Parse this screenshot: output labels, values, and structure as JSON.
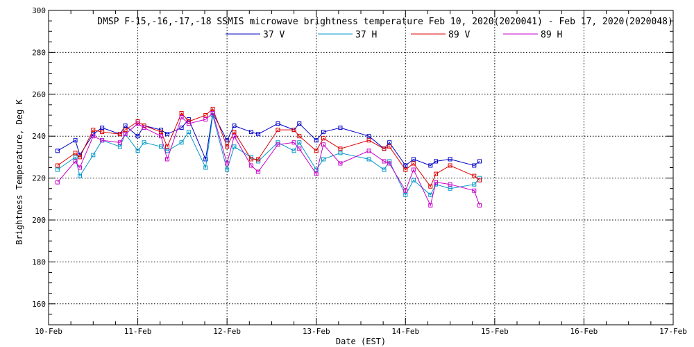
{
  "chart_data": {
    "type": "line",
    "title": "DMSP F-15,-16,-17,-18 SSMIS microwave brightness temperature Feb 10, 2020(2020041) - Feb 17, 2020(2020048)",
    "xlabel": "Date (EST)",
    "ylabel": "Brightness Temperature, Deg K",
    "xlim": [
      0,
      7
    ],
    "ylim": [
      150,
      300
    ],
    "xticks": [
      {
        "value": 0,
        "label": "10-Feb"
      },
      {
        "value": 1,
        "label": "11-Feb"
      },
      {
        "value": 2,
        "label": "12-Feb"
      },
      {
        "value": 3,
        "label": "13-Feb"
      },
      {
        "value": 4,
        "label": "14-Feb"
      },
      {
        "value": 5,
        "label": "15-Feb"
      },
      {
        "value": 6,
        "label": "16-Feb"
      },
      {
        "value": 7,
        "label": "17-Feb"
      }
    ],
    "yticks": [
      160,
      180,
      200,
      220,
      240,
      260,
      280,
      300
    ],
    "grid": true,
    "legend_position": "top-center",
    "series": [
      {
        "name": "37 V",
        "color": "#0000c8",
        "points": [
          [
            0.1,
            233
          ],
          [
            0.3,
            238
          ],
          [
            0.35,
            231
          ],
          [
            0.5,
            241
          ],
          [
            0.6,
            244
          ],
          [
            0.8,
            241
          ],
          [
            0.86,
            245
          ],
          [
            1.0,
            240
          ],
          [
            1.07,
            245
          ],
          [
            1.26,
            243
          ],
          [
            1.33,
            241
          ],
          [
            1.49,
            244
          ],
          [
            1.57,
            248
          ],
          [
            1.76,
            229
          ],
          [
            1.84,
            251
          ],
          [
            2.0,
            238
          ],
          [
            2.08,
            245
          ],
          [
            2.27,
            242
          ],
          [
            2.35,
            241
          ],
          [
            2.57,
            246
          ],
          [
            2.75,
            243
          ],
          [
            2.81,
            246
          ],
          [
            3.0,
            238
          ],
          [
            3.08,
            242
          ],
          [
            3.27,
            244
          ],
          [
            3.59,
            240
          ],
          [
            3.76,
            234
          ],
          [
            3.82,
            237
          ],
          [
            4.0,
            226
          ],
          [
            4.09,
            229
          ],
          [
            4.28,
            226
          ],
          [
            4.34,
            228
          ],
          [
            4.5,
            229
          ],
          [
            4.77,
            226
          ],
          [
            4.83,
            228
          ]
        ]
      },
      {
        "name": "37 H",
        "color": "#0096c8",
        "points": [
          [
            0.1,
            224
          ],
          [
            0.3,
            230
          ],
          [
            0.35,
            221
          ],
          [
            0.5,
            231
          ],
          [
            0.6,
            238
          ],
          [
            0.8,
            235
          ],
          [
            0.86,
            241
          ],
          [
            1.0,
            233
          ],
          [
            1.07,
            237
          ],
          [
            1.26,
            235
          ],
          [
            1.33,
            233
          ],
          [
            1.49,
            237
          ],
          [
            1.57,
            242
          ],
          [
            1.76,
            225
          ],
          [
            1.84,
            250
          ],
          [
            2.0,
            224
          ],
          [
            2.08,
            235
          ],
          [
            2.27,
            230
          ],
          [
            2.35,
            228
          ],
          [
            2.57,
            237
          ],
          [
            2.75,
            233
          ],
          [
            2.81,
            237
          ],
          [
            3.0,
            224
          ],
          [
            3.08,
            229
          ],
          [
            3.27,
            232
          ],
          [
            3.59,
            229
          ],
          [
            3.76,
            224
          ],
          [
            3.82,
            228
          ],
          [
            4.0,
            212
          ],
          [
            4.09,
            219
          ],
          [
            4.28,
            212
          ],
          [
            4.34,
            217
          ],
          [
            4.5,
            215
          ],
          [
            4.77,
            217
          ],
          [
            4.83,
            220
          ]
        ]
      },
      {
        "name": "89 V",
        "color": "#dc0000",
        "points": [
          [
            0.1,
            226
          ],
          [
            0.3,
            232
          ],
          [
            0.35,
            230
          ],
          [
            0.5,
            243
          ],
          [
            0.6,
            242
          ],
          [
            0.8,
            241
          ],
          [
            0.86,
            243
          ],
          [
            1.0,
            247
          ],
          [
            1.07,
            245
          ],
          [
            1.26,
            242
          ],
          [
            1.33,
            235
          ],
          [
            1.49,
            251
          ],
          [
            1.57,
            247
          ],
          [
            1.76,
            250
          ],
          [
            1.84,
            253
          ],
          [
            2.0,
            235
          ],
          [
            2.08,
            242
          ],
          [
            2.27,
            229
          ],
          [
            2.35,
            229
          ],
          [
            2.57,
            243
          ],
          [
            2.75,
            243
          ],
          [
            2.81,
            240
          ],
          [
            3.0,
            233
          ],
          [
            3.08,
            239
          ],
          [
            3.27,
            234
          ],
          [
            3.59,
            238
          ],
          [
            3.76,
            234
          ],
          [
            3.82,
            235
          ],
          [
            4.0,
            224
          ],
          [
            4.09,
            227
          ],
          [
            4.28,
            216
          ],
          [
            4.34,
            222
          ],
          [
            4.5,
            226
          ],
          [
            4.77,
            221
          ],
          [
            4.83,
            219
          ]
        ]
      },
      {
        "name": "89 H",
        "color": "#c800c8",
        "points": [
          [
            0.1,
            218
          ],
          [
            0.3,
            228
          ],
          [
            0.35,
            225
          ],
          [
            0.5,
            240
          ],
          [
            0.6,
            238
          ],
          [
            0.8,
            237
          ],
          [
            0.86,
            241
          ],
          [
            1.0,
            246
          ],
          [
            1.07,
            244
          ],
          [
            1.26,
            240
          ],
          [
            1.33,
            229
          ],
          [
            1.49,
            249
          ],
          [
            1.57,
            246
          ],
          [
            1.76,
            248
          ],
          [
            1.84,
            251
          ],
          [
            2.0,
            227
          ],
          [
            2.08,
            240
          ],
          [
            2.27,
            226
          ],
          [
            2.35,
            223
          ],
          [
            2.57,
            236
          ],
          [
            2.75,
            237
          ],
          [
            2.81,
            234
          ],
          [
            3.0,
            222
          ],
          [
            3.08,
            236
          ],
          [
            3.27,
            227
          ],
          [
            3.59,
            233
          ],
          [
            3.76,
            228
          ],
          [
            3.82,
            227
          ],
          [
            4.0,
            214
          ],
          [
            4.09,
            224
          ],
          [
            4.28,
            207
          ],
          [
            4.34,
            218
          ],
          [
            4.5,
            217
          ],
          [
            4.77,
            214
          ],
          [
            4.83,
            207
          ]
        ]
      }
    ]
  }
}
